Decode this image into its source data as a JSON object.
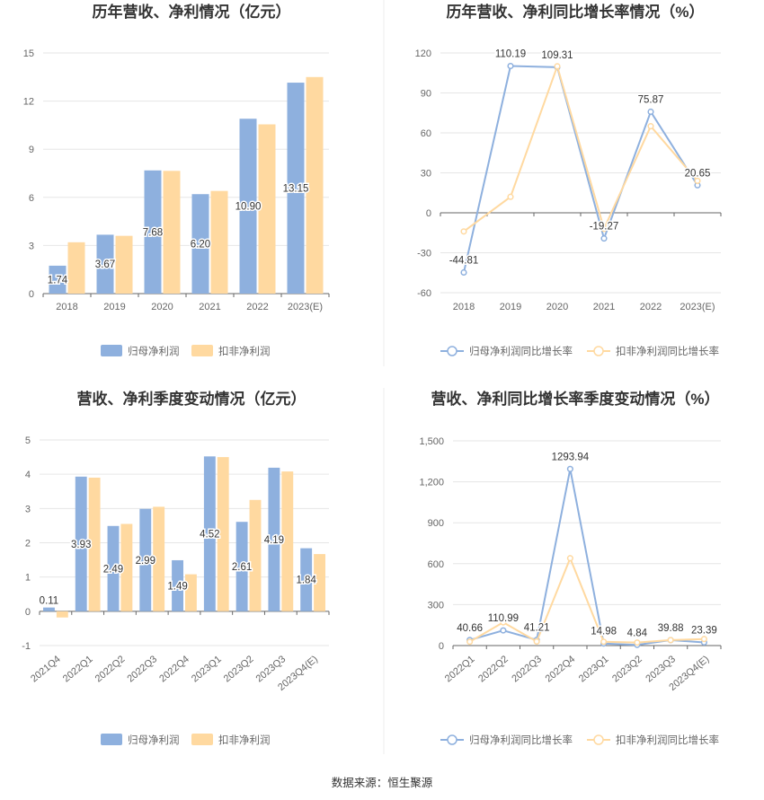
{
  "source": "数据来源：恒生聚源",
  "colors": {
    "primary": "#8eb0de",
    "secondary": "#ffd9a0",
    "grid": "#e6e6e6",
    "axis": "#666666"
  },
  "chart_data": [
    {
      "id": "annual-revenue-profit",
      "type": "bar",
      "title": "历年营收、净利情况（亿元）",
      "categories": [
        "2018",
        "2019",
        "2020",
        "2021",
        "2022",
        "2023(E)"
      ],
      "series": [
        {
          "name": "归母净利润",
          "values": [
            1.74,
            3.67,
            7.68,
            6.2,
            10.9,
            13.15
          ],
          "labels": [
            "1.74",
            "3.67",
            "7.68",
            "6.20",
            "10.90",
            "13.15"
          ]
        },
        {
          "name": "扣非净利润",
          "values": [
            3.2,
            3.6,
            7.65,
            6.4,
            10.55,
            13.5
          ]
        }
      ],
      "yticks": [
        "0",
        "3",
        "6",
        "9",
        "12",
        "15"
      ],
      "ylim": [
        0,
        15
      ],
      "grid": true,
      "legend": "bottom"
    },
    {
      "id": "annual-yoy-growth",
      "type": "line",
      "title": "历年营收、净利同比增长率情况（%）",
      "categories": [
        "2018",
        "2019",
        "2020",
        "2021",
        "2022",
        "2023(E)"
      ],
      "series": [
        {
          "name": "归母净利润同比增长率",
          "values": [
            -44.81,
            110.19,
            109.31,
            -19.27,
            75.87,
            20.65
          ],
          "labels": [
            "-44.81",
            "110.19",
            "109.31",
            "-19.27",
            "75.87",
            "20.65"
          ]
        },
        {
          "name": "扣非净利润同比增长率",
          "values": [
            -14,
            12,
            110,
            -12,
            65,
            24
          ]
        }
      ],
      "yticks": [
        "-60",
        "-30",
        "0",
        "30",
        "60",
        "90",
        "120"
      ],
      "ylim": [
        -60,
        120
      ],
      "grid": true,
      "legend": "bottom"
    },
    {
      "id": "quarterly-revenue-profit",
      "type": "bar",
      "title": "营收、净利季度变动情况（亿元）",
      "categories": [
        "2021Q4",
        "2022Q1",
        "2022Q2",
        "2022Q3",
        "2022Q4",
        "2023Q1",
        "2023Q2",
        "2023Q3",
        "2023Q4(E)"
      ],
      "series": [
        {
          "name": "归母净利润",
          "values": [
            0.11,
            3.93,
            2.49,
            2.99,
            1.49,
            4.52,
            2.61,
            4.19,
            1.84
          ],
          "labels": [
            "0.11",
            "3.93",
            "2.49",
            "2.99",
            "1.49",
            "4.52",
            "2.61",
            "4.19",
            "1.84"
          ]
        },
        {
          "name": "扣非净利润",
          "values": [
            -0.18,
            3.9,
            2.55,
            3.05,
            1.08,
            4.5,
            3.25,
            4.08,
            1.67
          ]
        }
      ],
      "yticks": [
        "-1",
        "0",
        "1",
        "2",
        "3",
        "4",
        "5"
      ],
      "ylim": [
        -1,
        5
      ],
      "grid": true,
      "legend": "bottom"
    },
    {
      "id": "quarterly-yoy-growth",
      "type": "line",
      "title": "营收、净利同比增长率季度变动情况（%）",
      "categories": [
        "2022Q1",
        "2022Q2",
        "2022Q3",
        "2022Q4",
        "2023Q1",
        "2023Q2",
        "2023Q3",
        "2023Q4(E)"
      ],
      "series": [
        {
          "name": "归母净利润同比增长率",
          "values": [
            40.66,
            110.99,
            41.21,
            1293.94,
            14.98,
            4.84,
            39.88,
            23.39
          ],
          "labels": [
            "40.66",
            "110.99",
            "41.21",
            "1293.94",
            "14.98",
            "4.84",
            "39.88",
            "23.39"
          ]
        },
        {
          "name": "扣非净利润同比增长率",
          "values": [
            28,
            170,
            30,
            640,
            28,
            22,
            40,
            48
          ]
        }
      ],
      "yticks": [
        "0",
        "300",
        "600",
        "900",
        "1,200",
        "1,500"
      ],
      "ylim": [
        0,
        1500
      ],
      "grid": true,
      "legend": "bottom"
    }
  ]
}
